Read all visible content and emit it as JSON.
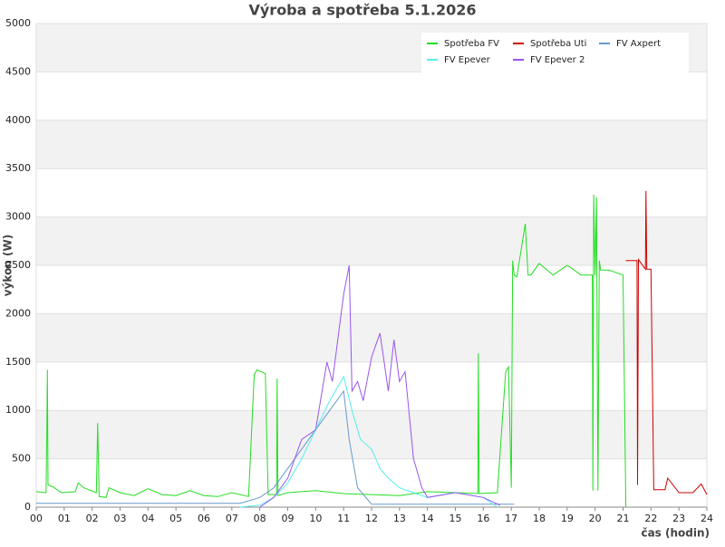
{
  "chart_data": {
    "type": "line",
    "title": "Výroba a spotřeba 5.1.2026",
    "xlabel": "čas (hodin)",
    "ylabel": "výkon (W)",
    "xlim": [
      0,
      24
    ],
    "ylim": [
      0,
      5000
    ],
    "xticks": [
      {
        "value": 0,
        "label": "00"
      },
      {
        "value": 1,
        "label": "01"
      },
      {
        "value": 2,
        "label": "02"
      },
      {
        "value": 3,
        "label": "03"
      },
      {
        "value": 4,
        "label": "04"
      },
      {
        "value": 5,
        "label": "05"
      },
      {
        "value": 6,
        "label": "06"
      },
      {
        "value": 7,
        "label": "07"
      },
      {
        "value": 8,
        "label": "08"
      },
      {
        "value": 9,
        "label": "09"
      },
      10,
      11,
      12,
      13,
      14,
      15,
      16,
      17,
      18,
      19,
      20,
      21,
      22,
      23,
      24
    ],
    "yticks": [
      0,
      500,
      1000,
      1500,
      2000,
      2500,
      3000,
      3500,
      4000,
      4500,
      5000
    ],
    "grid": true,
    "legend": "top-right",
    "series": [
      {
        "name": "Spotřeba FV",
        "color": "#22dd22",
        "x": [
          0,
          0.35,
          0.38,
          0.4,
          0.42,
          0.6,
          0.9,
          1.4,
          1.5,
          1.7,
          2.15,
          2.2,
          2.25,
          2.5,
          2.6,
          3,
          3.5,
          4,
          4.5,
          5,
          5.5,
          6,
          6.5,
          7,
          7.6,
          7.8,
          7.9,
          8.2,
          8.3,
          8.6,
          8.62,
          8.65,
          9,
          10,
          11,
          12,
          13,
          14,
          15,
          15.8,
          15.82,
          15.85,
          16.5,
          16.8,
          16.9,
          17,
          17.05,
          17.1,
          17.2,
          17.5,
          17.6,
          17.7,
          18,
          18.5,
          19,
          19.5,
          19.9,
          19.92,
          19.95,
          20,
          20.05,
          20.1,
          20.15,
          20.2,
          20.5,
          21,
          21.1
        ],
        "values": [
          160,
          150,
          800,
          1420,
          230,
          210,
          150,
          160,
          250,
          200,
          150,
          870,
          110,
          100,
          200,
          150,
          120,
          190,
          130,
          120,
          170,
          120,
          110,
          150,
          110,
          1370,
          1420,
          1380,
          130,
          130,
          1330,
          120,
          150,
          170,
          140,
          130,
          120,
          160,
          150,
          140,
          1590,
          140,
          150,
          1400,
          1450,
          200,
          2550,
          2400,
          2380,
          2930,
          2400,
          2400,
          2520,
          2400,
          2500,
          2400,
          2400,
          170,
          3230,
          2400,
          3200,
          170,
          2550,
          2450,
          2450,
          2400,
          0
        ]
      },
      {
        "name": "Spotřeba Uti",
        "color": "#cc0000",
        "x": [
          21.1,
          21.2,
          21.5,
          21.52,
          21.55,
          21.8,
          21.82,
          21.85,
          22,
          22.05,
          22.1,
          22.5,
          22.6,
          23,
          23.5,
          23.8,
          24
        ],
        "values": [
          2550,
          2550,
          2550,
          230,
          2560,
          2460,
          3270,
          2460,
          2460,
          1320,
          180,
          180,
          300,
          150,
          150,
          240,
          130
        ]
      },
      {
        "name": "FV Axpert",
        "color": "#6699cc",
        "x": [
          0,
          7.3,
          8,
          8.5,
          9,
          9.5,
          10,
          10.5,
          11,
          11.2,
          11.5,
          12,
          13,
          14,
          15,
          16,
          17,
          17.1
        ],
        "values": [
          40,
          40,
          100,
          200,
          400,
          600,
          800,
          1000,
          1200,
          700,
          200,
          30,
          30,
          30,
          30,
          30,
          30,
          30
        ]
      },
      {
        "name": "FV Epever",
        "color": "#55eeee",
        "x": [
          7.3,
          8,
          8.5,
          9,
          9.5,
          10,
          10.5,
          11,
          11.3,
          11.6,
          12,
          12.3,
          12.6,
          13,
          13.5,
          14,
          15,
          16,
          16.5
        ],
        "values": [
          0,
          20,
          100,
          250,
          500,
          800,
          1100,
          1350,
          1000,
          700,
          600,
          400,
          300,
          200,
          150,
          100,
          150,
          100,
          0
        ]
      },
      {
        "name": "FV Epever 2",
        "color": "#9955ee",
        "x": [
          8,
          8.5,
          9,
          9.5,
          10,
          10.4,
          10.6,
          11,
          11.2,
          11.3,
          11.5,
          11.7,
          12,
          12.3,
          12.6,
          12.8,
          13,
          13.2,
          13.5,
          13.8,
          14,
          15,
          16,
          16.6
        ],
        "values": [
          0,
          100,
          300,
          700,
          800,
          1500,
          1300,
          2200,
          2500,
          1200,
          1300,
          1100,
          1550,
          1800,
          1200,
          1730,
          1300,
          1400,
          500,
          200,
          100,
          150,
          100,
          20
        ]
      }
    ]
  }
}
